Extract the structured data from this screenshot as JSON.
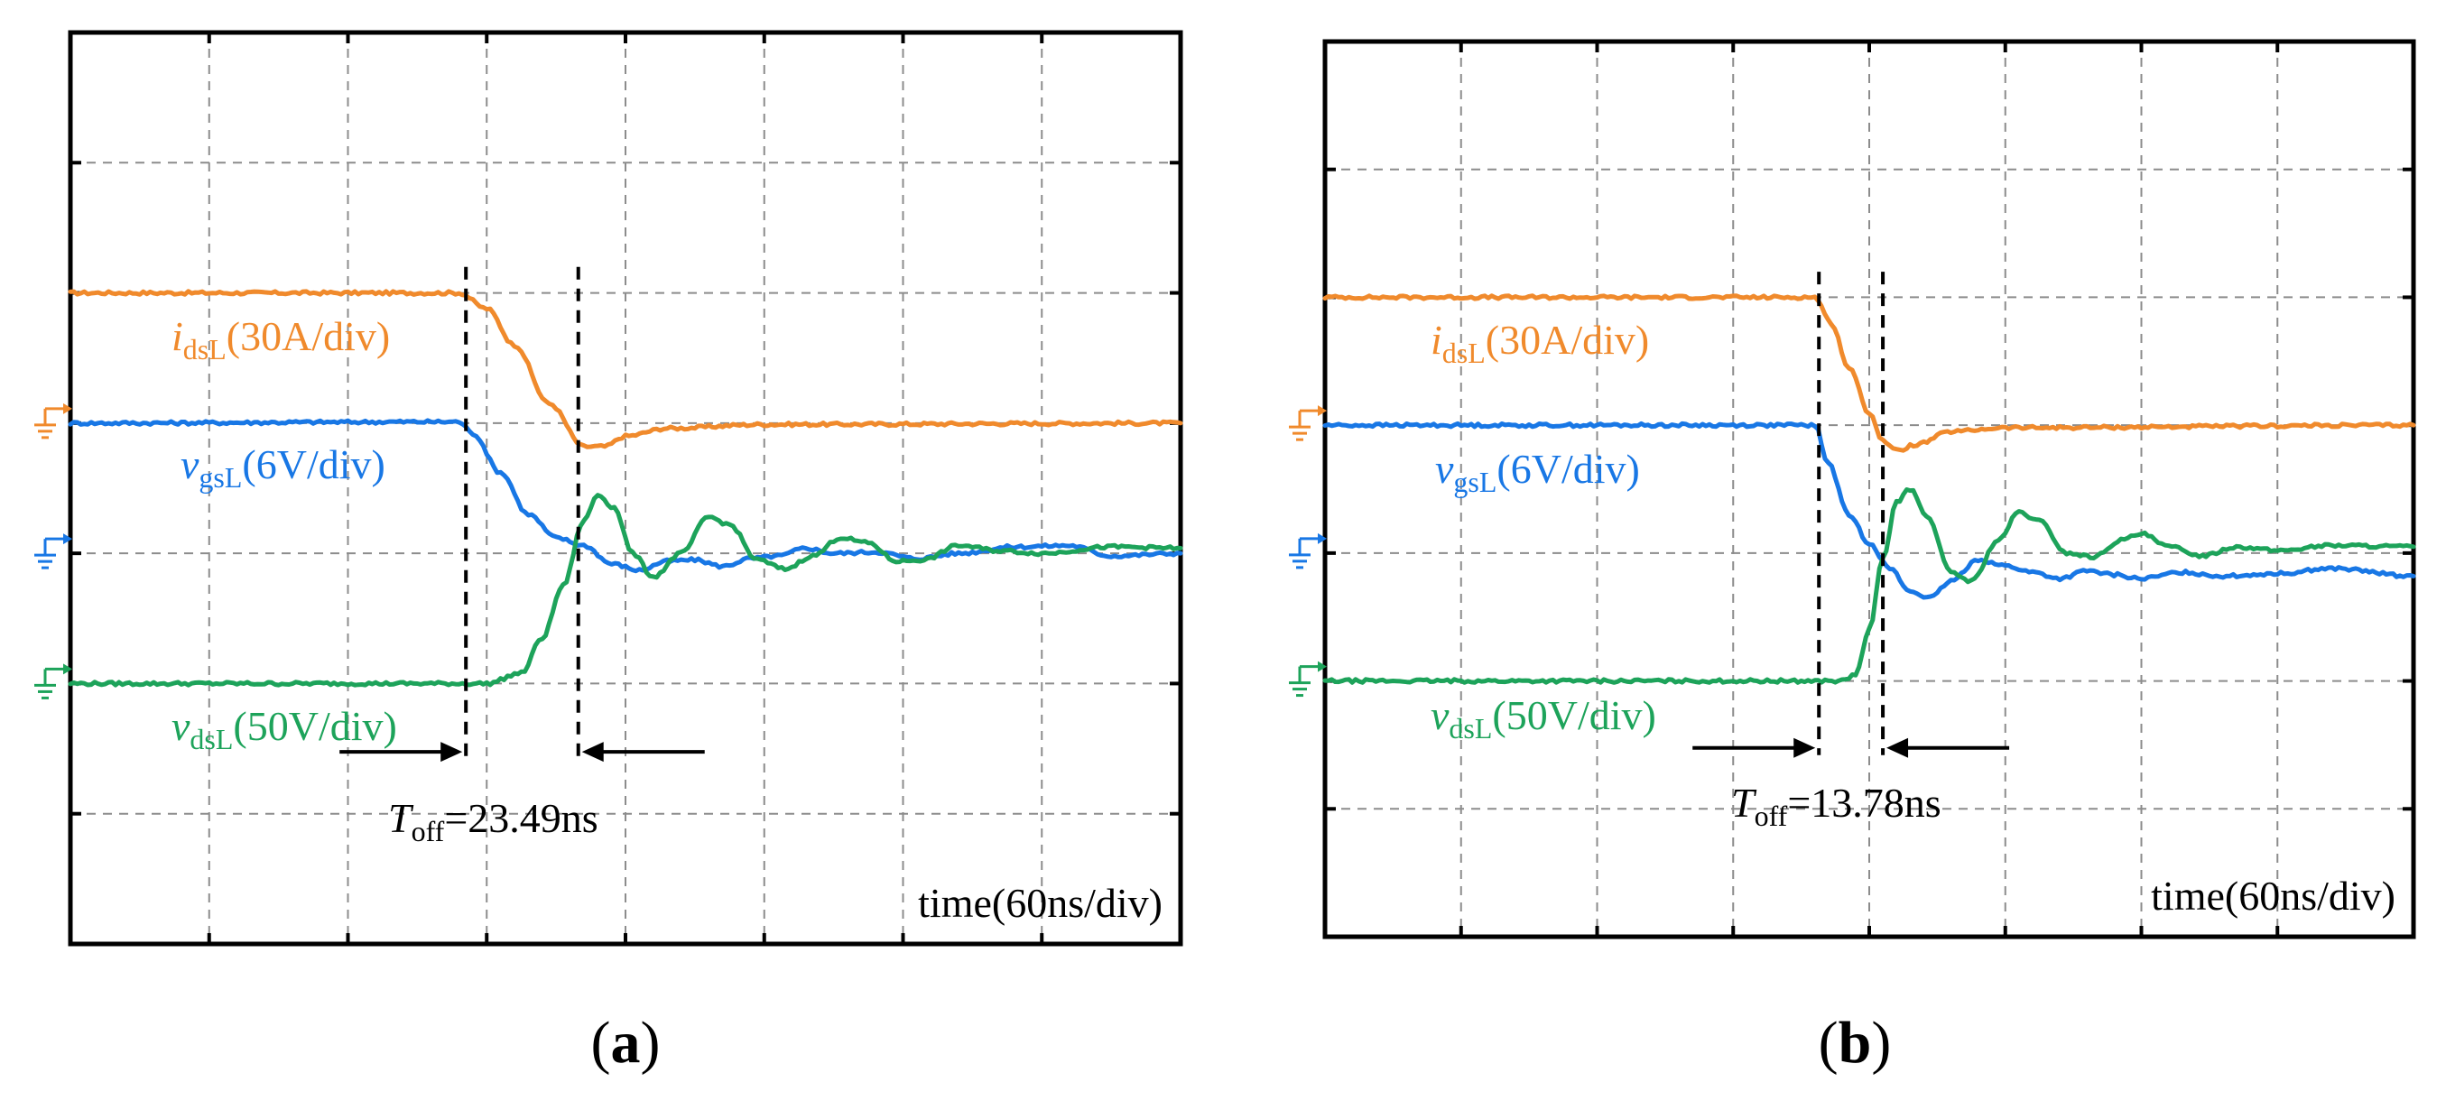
{
  "chart_data": [
    {
      "panel": "a",
      "type": "line",
      "caption_open": "(",
      "caption_letter": "a",
      "caption_close": ")",
      "xlabel": "time(60ns/div)",
      "x_div_total": 8,
      "y_div_total": 7,
      "toff_label": "T",
      "toff_sub": "off",
      "toff_value": "=23.49ns",
      "toff_start_div": 2.85,
      "toff_end_div": 3.66,
      "series": [
        {
          "name": "idsL",
          "lead": "i",
          "sub": "dsL",
          "scale": "(30A/div)",
          "color": "#f08a2c",
          "ground_div": 4,
          "points": [
            [
              0,
              5
            ],
            [
              2.8,
              5
            ],
            [
              3.0,
              4.88
            ],
            [
              3.2,
              4.6
            ],
            [
              3.45,
              4.15
            ],
            [
              3.7,
              3.82
            ],
            [
              3.85,
              3.82
            ],
            [
              4.0,
              3.9
            ],
            [
              4.3,
              3.96
            ],
            [
              5.0,
              3.99
            ],
            [
              8,
              4.0
            ]
          ]
        },
        {
          "name": "vgsL",
          "lead": "v",
          "sub": "gsL",
          "scale": "(6V/div)",
          "color": "#1877e5",
          "ground_div": 3,
          "points": [
            [
              0,
              4
            ],
            [
              2.8,
              4.01
            ],
            [
              2.9,
              3.92
            ],
            [
              3.1,
              3.62
            ],
            [
              3.3,
              3.3
            ],
            [
              3.5,
              3.12
            ],
            [
              3.7,
              3.06
            ],
            [
              3.9,
              2.92
            ],
            [
              4.1,
              2.87
            ],
            [
              4.3,
              2.94
            ],
            [
              4.5,
              2.95
            ],
            [
              4.7,
              2.9
            ],
            [
              4.9,
              2.96
            ],
            [
              5.1,
              2.98
            ],
            [
              5.3,
              3.04
            ],
            [
              5.5,
              3.0
            ],
            [
              5.8,
              3.01
            ],
            [
              6.1,
              2.96
            ],
            [
              6.4,
              3.0
            ],
            [
              6.8,
              3.05
            ],
            [
              7.2,
              3.06
            ],
            [
              7.5,
              2.98
            ],
            [
              8,
              3.0
            ]
          ]
        },
        {
          "name": "vdsL",
          "lead": "v",
          "sub": "dsL",
          "scale": "(50V/div)",
          "color": "#1da35a",
          "ground_div": 2,
          "points": [
            [
              0,
              2
            ],
            [
              3.0,
              2.0
            ],
            [
              3.25,
              2.08
            ],
            [
              3.4,
              2.35
            ],
            [
              3.55,
              2.75
            ],
            [
              3.7,
              3.25
            ],
            [
              3.8,
              3.45
            ],
            [
              3.92,
              3.35
            ],
            [
              4.05,
              3.0
            ],
            [
              4.2,
              2.82
            ],
            [
              4.4,
              3.0
            ],
            [
              4.6,
              3.28
            ],
            [
              4.75,
              3.22
            ],
            [
              4.95,
              2.95
            ],
            [
              5.15,
              2.88
            ],
            [
              5.35,
              2.98
            ],
            [
              5.55,
              3.12
            ],
            [
              5.75,
              3.08
            ],
            [
              5.95,
              2.94
            ],
            [
              6.15,
              2.95
            ],
            [
              6.4,
              3.06
            ],
            [
              6.7,
              3.02
            ],
            [
              7.0,
              3.0
            ],
            [
              7.5,
              3.05
            ],
            [
              8,
              3.04
            ]
          ]
        }
      ]
    },
    {
      "panel": "b",
      "type": "line",
      "caption_open": "(",
      "caption_letter": "b",
      "caption_close": ")",
      "xlabel": "time(60ns/div)",
      "x_div_total": 8,
      "y_div_total": 7,
      "toff_label": "T",
      "toff_sub": "off",
      "toff_value": "=13.78ns",
      "toff_start_div": 3.63,
      "toff_end_div": 4.1,
      "series": [
        {
          "name": "idsL",
          "lead": "i",
          "sub": "dsL",
          "scale": "(30A/div)",
          "color": "#f08a2c",
          "ground_div": 4,
          "points": [
            [
              0,
              5
            ],
            [
              3.6,
              5
            ],
            [
              3.72,
              4.8
            ],
            [
              3.85,
              4.45
            ],
            [
              4.0,
              4.1
            ],
            [
              4.1,
              3.88
            ],
            [
              4.2,
              3.8
            ],
            [
              4.35,
              3.85
            ],
            [
              4.6,
              3.95
            ],
            [
              5.0,
              3.98
            ],
            [
              8,
              4.0
            ]
          ]
        },
        {
          "name": "vgsL",
          "lead": "v",
          "sub": "gsL",
          "scale": "(6V/div)",
          "color": "#1877e5",
          "ground_div": 3,
          "points": [
            [
              0,
              4
            ],
            [
              3.6,
              4.0
            ],
            [
              3.7,
              3.7
            ],
            [
              3.85,
              3.3
            ],
            [
              4.0,
              3.08
            ],
            [
              4.15,
              2.88
            ],
            [
              4.3,
              2.7
            ],
            [
              4.45,
              2.65
            ],
            [
              4.6,
              2.78
            ],
            [
              4.8,
              2.95
            ],
            [
              5.0,
              2.9
            ],
            [
              5.2,
              2.85
            ],
            [
              5.4,
              2.8
            ],
            [
              5.6,
              2.86
            ],
            [
              5.8,
              2.83
            ],
            [
              6.0,
              2.8
            ],
            [
              6.3,
              2.85
            ],
            [
              6.6,
              2.82
            ],
            [
              7.0,
              2.84
            ],
            [
              7.4,
              2.88
            ],
            [
              8,
              2.82
            ]
          ]
        },
        {
          "name": "vdsL",
          "lead": "v",
          "sub": "dsL",
          "scale": "(50V/div)",
          "color": "#1da35a",
          "ground_div": 2,
          "points": [
            [
              0,
              2
            ],
            [
              3.8,
              2.0
            ],
            [
              3.9,
              2.05
            ],
            [
              4.0,
              2.4
            ],
            [
              4.1,
              2.95
            ],
            [
              4.2,
              3.4
            ],
            [
              4.3,
              3.5
            ],
            [
              4.42,
              3.3
            ],
            [
              4.6,
              2.85
            ],
            [
              4.75,
              2.78
            ],
            [
              4.95,
              3.1
            ],
            [
              5.1,
              3.32
            ],
            [
              5.25,
              3.25
            ],
            [
              5.45,
              3.0
            ],
            [
              5.65,
              2.97
            ],
            [
              5.85,
              3.1
            ],
            [
              6.0,
              3.15
            ],
            [
              6.2,
              3.05
            ],
            [
              6.45,
              2.98
            ],
            [
              6.7,
              3.05
            ],
            [
              7.0,
              3.02
            ],
            [
              7.4,
              3.06
            ],
            [
              8,
              3.05
            ]
          ]
        }
      ]
    }
  ]
}
